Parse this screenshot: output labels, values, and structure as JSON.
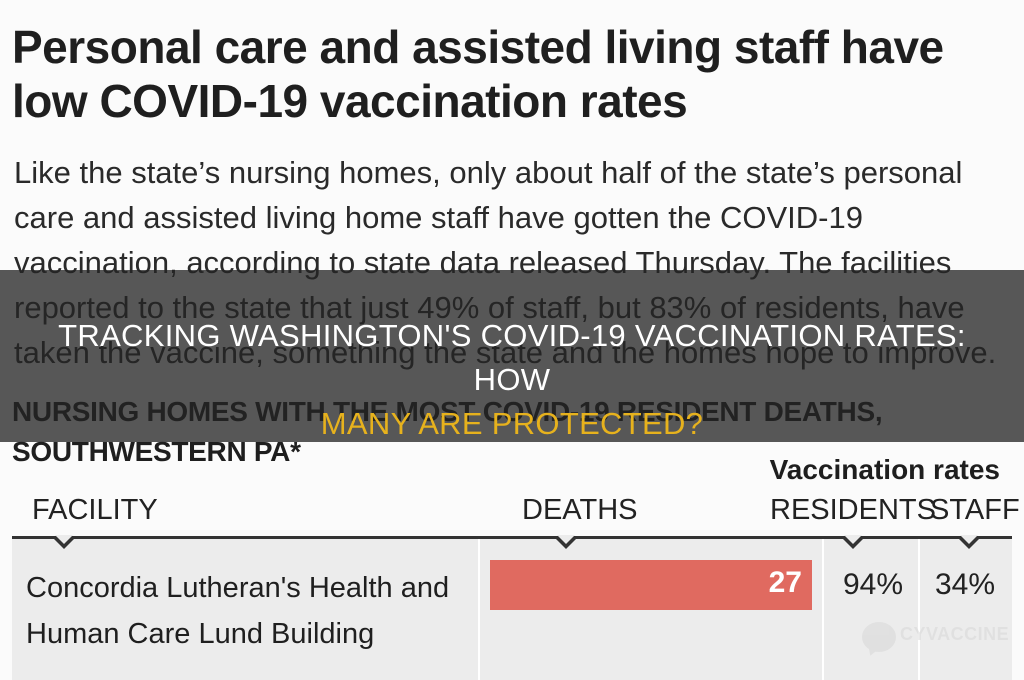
{
  "article": {
    "headline": "Personal care and assisted living staff have low COVID-19 vaccination rates",
    "body": "Like the state’s nursing homes, only about half of the state’s personal care and assisted living home staff have gotten the COVID-19 vaccination, according to state data released Thursday. The facilities reported to the state that just 49% of staff, but 83% of residents, have taken the vaccine, something the state and the homes hope to improve."
  },
  "table": {
    "title": "NURSING HOMES WITH THE MOST COVID-19 RESIDENT DEATHS, SOUTHWESTERN PA*",
    "group_title": "Vaccination rates",
    "columns": {
      "facility": "FACILITY",
      "deaths": "DEATHS",
      "residents": "RESIDENTS",
      "staff": "STAFF"
    },
    "rows": [
      {
        "facility": "Concordia Lutheran's Health and Human Care Lund Building",
        "deaths": "27",
        "residents": "94%",
        "staff": "34%"
      }
    ],
    "bar_color": "#e06a60"
  },
  "overlay": {
    "line1": "Tracking Washington's COVID-19 Vaccination Rates: How",
    "line2": "Many Are Protected?",
    "accent_color": "#e7b21d"
  },
  "watermark": {
    "brand": "CYVACCINE",
    "icon": "chat-bubble-icon"
  }
}
